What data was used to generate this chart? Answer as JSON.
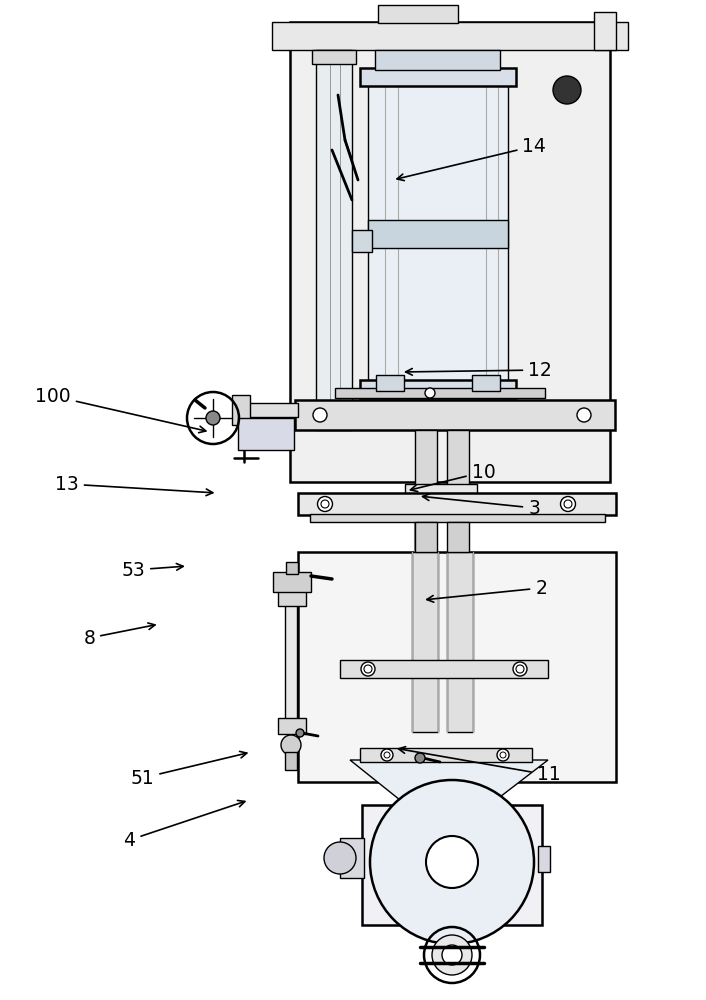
{
  "bg_color": "#ffffff",
  "lc": "#000000",
  "lc_gray": "#666666",
  "lw": 1.0,
  "tlw": 1.8,
  "fig_width": 7.06,
  "fig_height": 10.0,
  "dpi": 100,
  "labels": {
    "4": [
      0.175,
      0.865,
      0.355,
      0.83
    ],
    "51": [
      0.185,
      0.8,
      0.358,
      0.765
    ],
    "11": [
      0.76,
      0.79,
      0.56,
      0.755
    ],
    "8": [
      0.12,
      0.65,
      0.228,
      0.638
    ],
    "2": [
      0.76,
      0.59,
      0.6,
      0.6
    ],
    "53": [
      0.175,
      0.572,
      0.268,
      0.57
    ],
    "3": [
      0.752,
      0.51,
      0.595,
      0.498
    ],
    "13": [
      0.082,
      0.485,
      0.31,
      0.495
    ],
    "10": [
      0.673,
      0.474,
      0.578,
      0.492
    ],
    "100": [
      0.055,
      0.398,
      0.3,
      0.44
    ],
    "12": [
      0.752,
      0.372,
      0.57,
      0.375
    ],
    "14": [
      0.745,
      0.148,
      0.56,
      0.182
    ]
  }
}
